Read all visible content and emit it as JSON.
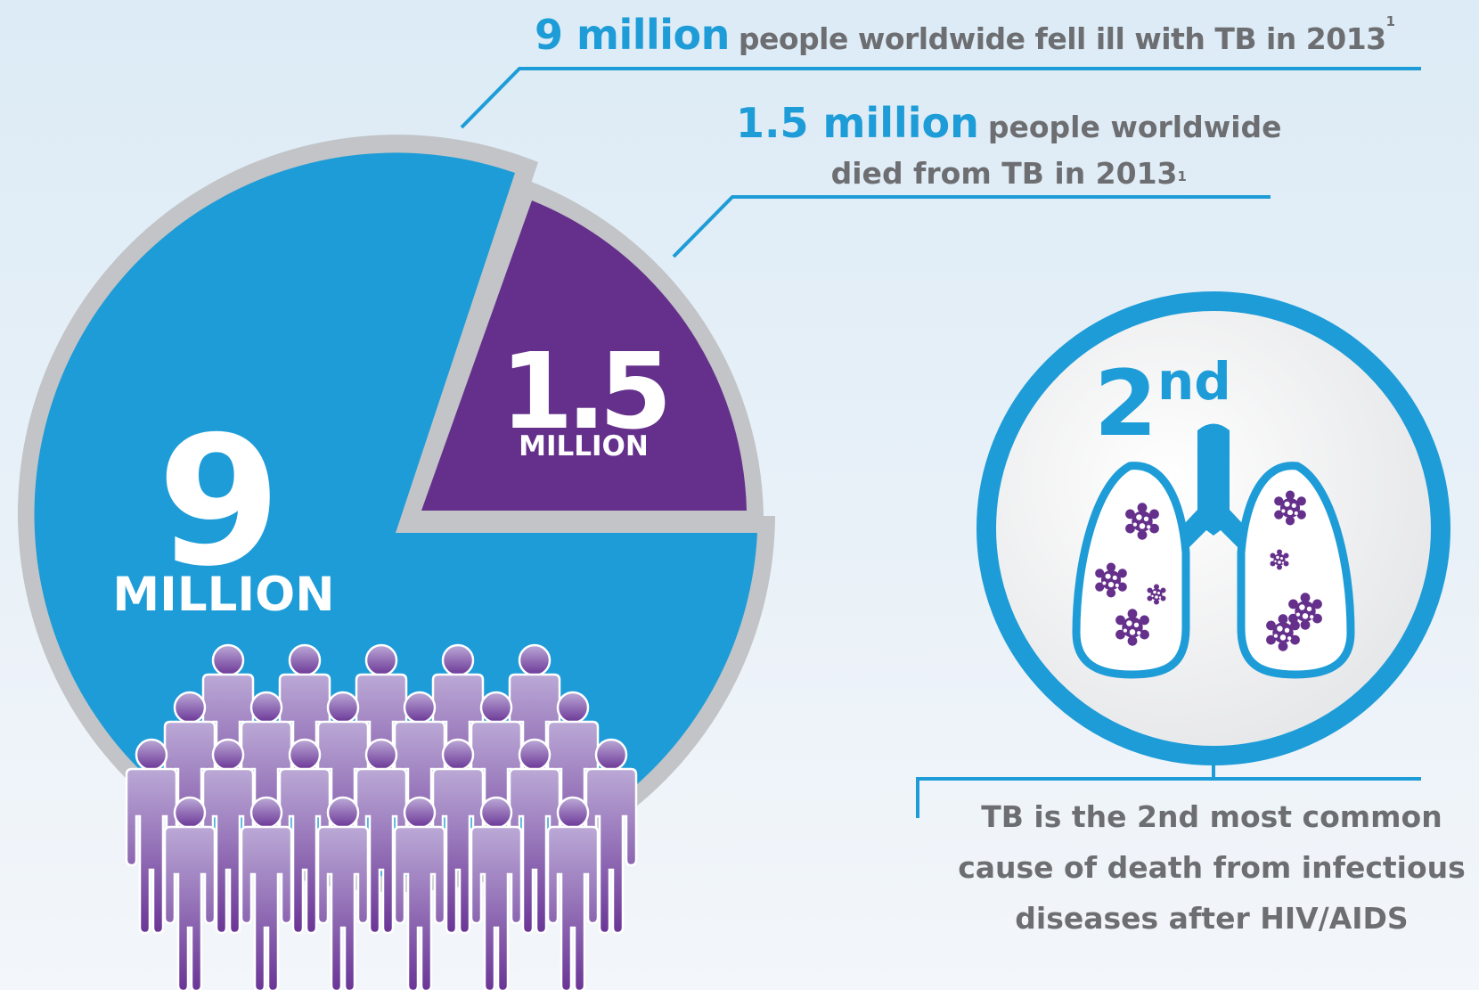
{
  "stats": {
    "ill": {
      "value": "9 million",
      "caption": "people worldwide fell ill with TB in 2013",
      "footnote": "1",
      "pie_number": "9",
      "pie_unit": "MILLION"
    },
    "died": {
      "value": "1.5 million",
      "caption_line1": "people worldwide",
      "caption_line2": "died from TB in 2013",
      "footnote": "1",
      "pie_number": "1.5",
      "pie_unit": "MILLION"
    }
  },
  "rank": {
    "number": "2",
    "suffix": "nd",
    "text": "TB is the 2nd most common cause of death from infectious diseases after HIV/AIDS"
  },
  "colors": {
    "blue": "#1e9cd7",
    "purple": "#65308b",
    "grey_ring": "#c2c4c7",
    "text_grey": "#6d6e71",
    "people_top": "#bba9d6",
    "people_bottom": "#6a3596"
  },
  "icons": [
    "people-crowd-icon",
    "lungs-icon",
    "bacteria-icon"
  ]
}
